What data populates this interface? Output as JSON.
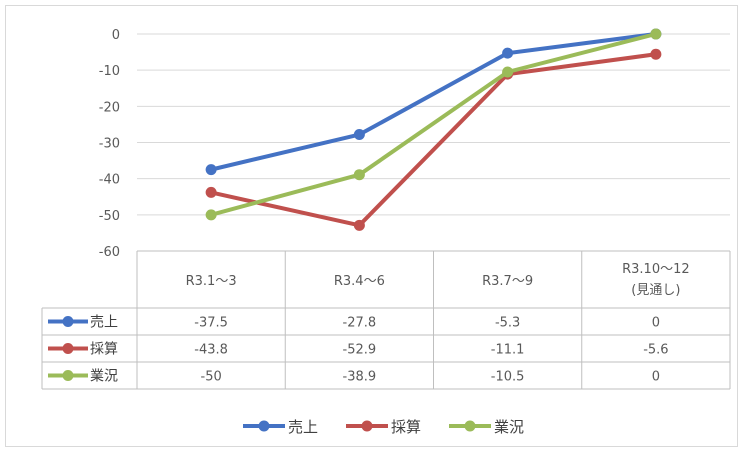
{
  "chart_data": {
    "type": "line",
    "categories": [
      "R3.1～3",
      "R3.4～6",
      "R3.7～9",
      "R3.10～12"
    ],
    "category_sublabels": [
      "",
      "",
      "",
      "(見通し)"
    ],
    "ylim": [
      -60,
      0
    ],
    "yticks": [
      0,
      -10,
      -20,
      -30,
      -40,
      -50,
      -60
    ],
    "grid": true,
    "legend_position": "bottom",
    "data_table": true,
    "series": [
      {
        "name": "売上",
        "color": "#4472c4",
        "values": [
          -37.5,
          -27.8,
          -5.3,
          0
        ]
      },
      {
        "name": "採算",
        "color": "#c0504d",
        "values": [
          -43.8,
          -52.9,
          -11.1,
          -5.6
        ]
      },
      {
        "name": "業況",
        "color": "#9bbb59",
        "values": [
          -50,
          -38.9,
          -10.5,
          0
        ]
      }
    ]
  }
}
